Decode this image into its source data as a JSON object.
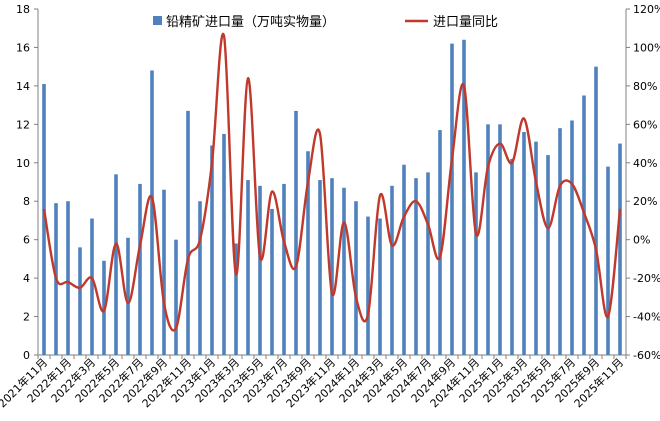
{
  "chart_data": {
    "type": "bar",
    "legend": {
      "bar_label": "铅精矿进口量（万吨实物量）",
      "line_label": "进口量同比",
      "placement": "top"
    },
    "colors": {
      "bar": "#4f81bd",
      "line": "#c0392b"
    },
    "y_left": {
      "min": 0,
      "max": 18,
      "step": 2
    },
    "y_right": {
      "min": -60,
      "max": 120,
      "step": 20,
      "suffix": "%"
    },
    "grid": false,
    "x_labels": [
      "2021年11月",
      "2022年1月",
      "2022年3月",
      "2022年5月",
      "2022年7月",
      "2022年9月",
      "2022年11月",
      "2023年1月",
      "2023年3月",
      "2023年5月",
      "2023年7月",
      "2023年9月",
      "2023年11月",
      "2024年1月",
      "2024年3月",
      "2024年5月",
      "2024年7月",
      "2024年9月",
      "2024年11月",
      "2025年1月",
      "2025年3月",
      "2025年5月",
      "2025年7月",
      "2025年9月",
      "2025年11月"
    ],
    "series": [
      {
        "name": "铅精矿进口量（万吨实物量）",
        "type": "bar",
        "values": [
          14.1,
          7.9,
          8.0,
          5.6,
          7.1,
          4.9,
          9.4,
          6.1,
          8.9,
          14.8,
          8.6,
          6.0,
          12.7,
          8.0,
          10.9,
          11.5,
          5.8,
          9.1,
          8.8,
          7.6,
          8.9,
          12.7,
          10.6,
          9.1,
          9.2,
          8.7,
          8.0,
          7.2,
          7.1,
          8.8,
          9.9,
          9.2,
          9.5,
          11.7,
          16.2,
          16.4,
          9.5,
          12.0,
          12.0,
          10.2,
          11.6,
          11.1,
          10.4,
          11.8,
          12.2,
          13.5,
          15.0,
          9.8,
          11.0
        ]
      },
      {
        "name": "进口量同比",
        "type": "line",
        "values": [
          16,
          -20,
          -22,
          -25,
          -20,
          -37,
          -2,
          -33,
          -3,
          22,
          -33,
          -46,
          -10,
          0,
          40,
          106,
          -18,
          84,
          -9,
          25,
          -1,
          -14,
          30,
          55,
          -28,
          9,
          -30,
          -39,
          23,
          -3,
          12,
          20,
          8,
          -9,
          42,
          80,
          3,
          38,
          50,
          40,
          63,
          30,
          6,
          28,
          29,
          14,
          -5,
          -40,
          16
        ]
      }
    ]
  }
}
